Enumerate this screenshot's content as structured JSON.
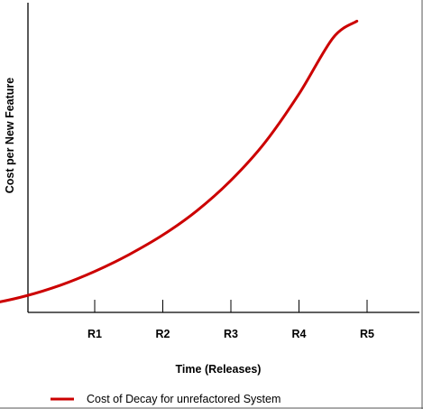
{
  "chart_data": {
    "type": "line",
    "title": "",
    "xlabel": "Time (Releases)",
    "ylabel": "Cost per New Feature",
    "categories": [
      "R1",
      "R2",
      "R3",
      "R4",
      "R5"
    ],
    "xlim": [
      -0.95,
      5.8
    ],
    "ylim": [
      0,
      100
    ],
    "grid": false,
    "legend_position": "bottom-left",
    "series": [
      {
        "name": "Cost of Decay for unrefactored System",
        "color": "#cc0000",
        "x": [
          -0.95,
          -0.5,
          0.0,
          0.5,
          1.0,
          1.5,
          2.0,
          2.5,
          3.0,
          3.5,
          4.0,
          4.5,
          4.85
        ],
        "y": [
          1.5,
          3.0,
          5.5,
          9.0,
          13.5,
          19.0,
          25.5,
          33.5,
          43.5,
          56.0,
          72.0,
          90.5,
          96.0
        ]
      }
    ]
  },
  "colors": {
    "axis": "#000000",
    "series": "#cc0000",
    "frame": "#555555"
  }
}
